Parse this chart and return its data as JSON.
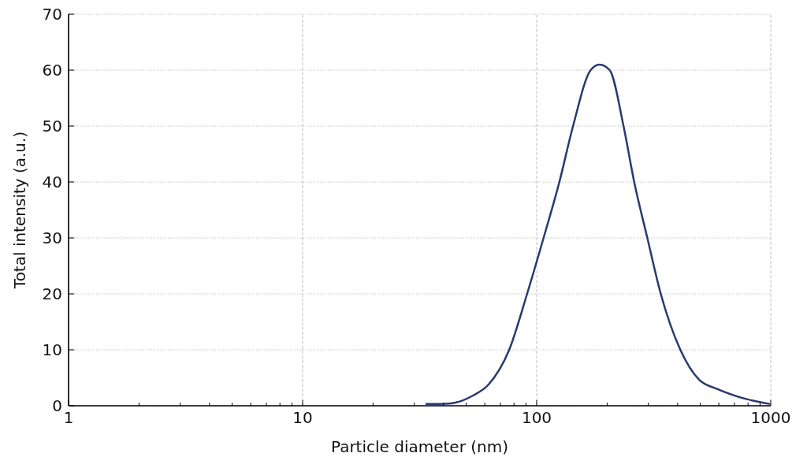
{
  "chart_data": {
    "type": "line",
    "xlabel": "Particle diameter (nm)",
    "ylabel": "Total intensity (a.u.)",
    "log": "x",
    "grid": true,
    "marker": "none",
    "line_style": "solid",
    "series": [
      {
        "color": "#283a6e",
        "x": [
          33.5,
          42.3,
          53.3,
          62.3,
          76.3,
          91,
          107,
          125,
          143,
          170,
          185,
          205,
          235,
          261,
          297,
          339,
          411,
          493,
          590,
          727,
          993
        ],
        "values": [
          0.3,
          0.4,
          1.8,
          3.8,
          10,
          20,
          30,
          40,
          50,
          60,
          61,
          60,
          50,
          40,
          30,
          20,
          10,
          4.7,
          3,
          1.6,
          0.3
        ]
      }
    ],
    "xlim": [
      1,
      1000
    ],
    "xticks": [
      1,
      {
        "value": 2,
        "label": null
      },
      {
        "value": 3,
        "label": null
      },
      {
        "value": 4,
        "label": null
      },
      {
        "value": 5,
        "label": null
      },
      {
        "value": 6,
        "label": null
      },
      {
        "value": 7,
        "label": null
      },
      {
        "value": 8,
        "label": null
      },
      {
        "value": 9,
        "label": null
      },
      10,
      {
        "value": 20,
        "label": null
      },
      {
        "value": 30,
        "label": null
      },
      {
        "value": 40,
        "label": null
      },
      {
        "value": 50,
        "label": null
      },
      {
        "value": 60,
        "label": null
      },
      {
        "value": 70,
        "label": null
      },
      {
        "value": 80,
        "label": null
      },
      {
        "value": 90,
        "label": null
      },
      100,
      {
        "value": 200,
        "label": null
      },
      {
        "value": 300,
        "label": null
      },
      {
        "value": 400,
        "label": null
      },
      {
        "value": 500,
        "label": null
      },
      {
        "value": 600,
        "label": null
      },
      {
        "value": 700,
        "label": null
      },
      {
        "value": 800,
        "label": null
      },
      {
        "value": 900,
        "label": null
      },
      1000
    ],
    "ylim": [
      0,
      70
    ],
    "yticks": [
      0,
      10,
      20,
      30,
      40,
      50,
      60,
      70
    ]
  }
}
